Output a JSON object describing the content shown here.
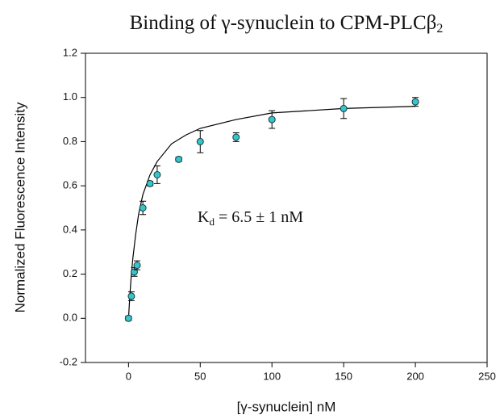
{
  "chart_data": {
    "type": "scatter",
    "title": {
      "text": "Binding of γ-synuclein to CPM-PLCβ",
      "subscript": "2"
    },
    "xlabel": "[γ-synuclein] nM",
    "ylabel": "Normalized Fluorescence Intensity",
    "annotation": {
      "text": "K",
      "subscript": "d",
      "rest": " = 6.5 ± 1 nM"
    },
    "xlim": [
      -30,
      250
    ],
    "xticks": [
      0,
      50,
      100,
      150,
      200,
      250
    ],
    "ylim": [
      -0.2,
      1.2
    ],
    "yticks": [
      -0.2,
      {
        "value": 0,
        "label": "0.0"
      },
      0.2,
      0.4,
      0.6,
      0.8,
      {
        "value": 1,
        "label": "1.0"
      },
      1.2
    ],
    "series": [
      {
        "mode": "markers",
        "color": "#33c6cc",
        "x": [
          0,
          2,
          4,
          6,
          10,
          15,
          20,
          35,
          50,
          75,
          100,
          150,
          200
        ],
        "values": [
          0,
          0.1,
          0.21,
          0.24,
          0.5,
          0.61,
          0.65,
          0.72,
          0.8,
          0.82,
          0.9,
          0.95,
          0.98
        ],
        "errors": [
          0.01,
          0.02,
          0.02,
          0.02,
          0.03,
          0.01,
          0.04,
          0.01,
          0.05,
          0.02,
          0.04,
          0.045,
          0.02
        ]
      },
      {
        "mode": "line",
        "color": "#000000",
        "x": [
          0,
          1,
          2,
          3,
          5,
          7,
          10,
          15,
          20,
          30,
          40,
          50,
          75,
          100,
          150,
          200
        ],
        "values": [
          0,
          0.11,
          0.2,
          0.27,
          0.38,
          0.47,
          0.56,
          0.65,
          0.71,
          0.79,
          0.83,
          0.86,
          0.9,
          0.93,
          0.95,
          0.96
        ]
      }
    ]
  }
}
